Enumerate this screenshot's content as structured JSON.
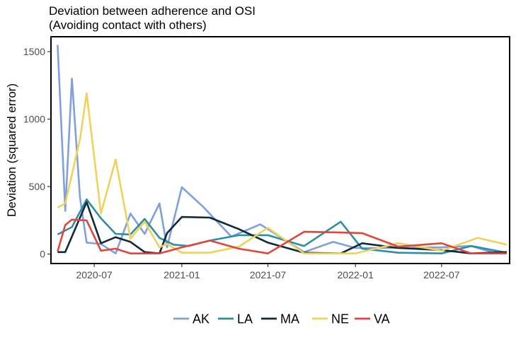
{
  "chart_data": {
    "type": "line",
    "title": "Deviation between adherence and OSI\n(Avoiding contact with others)",
    "title_lines": [
      "Deviation between adherence and OSI",
      "(Avoiding contact with others)"
    ],
    "xlabel": "",
    "ylabel": "Deviation (squared error)",
    "xlim": [
      "2020-04-01",
      "2022-11-21"
    ],
    "ylim": [
      -70,
      1610
    ],
    "x_ticks": [
      "2020-07-01",
      "2021-01-01",
      "2021-07-01",
      "2022-01-01",
      "2022-07-01"
    ],
    "x_tick_labels": [
      "2020-07",
      "2021-01",
      "2021-07",
      "2022-01",
      "2022-07"
    ],
    "y_ticks": [
      0,
      500,
      1000,
      1500
    ],
    "y_tick_labels": [
      "0",
      "500",
      "1000",
      "1500"
    ],
    "grid": false,
    "legend_position": "bottom",
    "series": [
      {
        "name": "AK",
        "color": "#7f9fdf",
        "points": [
          [
            "2020-04-15",
            1550
          ],
          [
            "2020-05-01",
            320
          ],
          [
            "2020-05-15",
            1300
          ],
          [
            "2020-06-01",
            420
          ],
          [
            "2020-06-15",
            85
          ],
          [
            "2020-07-15",
            75
          ],
          [
            "2020-08-15",
            5
          ],
          [
            "2020-09-15",
            300
          ],
          [
            "2020-10-15",
            150
          ],
          [
            "2020-11-15",
            375
          ],
          [
            "2020-12-01",
            50
          ],
          [
            "2021-01-01",
            495
          ],
          [
            "2021-02-15",
            350
          ],
          [
            "2021-04-15",
            130
          ],
          [
            "2021-06-15",
            220
          ],
          [
            "2021-09-15",
            15
          ],
          [
            "2021-11-15",
            90
          ],
          [
            "2022-01-01",
            45
          ],
          [
            "2022-04-01",
            45
          ],
          [
            "2022-07-01",
            50
          ],
          [
            "2022-09-01",
            60
          ],
          [
            "2022-10-15",
            15
          ],
          [
            "2022-11-15",
            10
          ]
        ]
      },
      {
        "name": "LA",
        "color": "#2b8ea6",
        "points": [
          [
            "2020-04-15",
            145
          ],
          [
            "2020-05-15",
            200
          ],
          [
            "2020-06-15",
            405
          ],
          [
            "2020-07-15",
            265
          ],
          [
            "2020-08-15",
            150
          ],
          [
            "2020-09-15",
            145
          ],
          [
            "2020-10-15",
            260
          ],
          [
            "2020-11-15",
            120
          ],
          [
            "2020-12-15",
            70
          ],
          [
            "2021-01-15",
            60
          ],
          [
            "2021-03-01",
            100
          ],
          [
            "2021-05-01",
            140
          ],
          [
            "2021-07-01",
            140
          ],
          [
            "2021-09-15",
            60
          ],
          [
            "2021-12-01",
            240
          ],
          [
            "2022-01-15",
            40
          ],
          [
            "2022-04-01",
            10
          ],
          [
            "2022-07-01",
            5
          ],
          [
            "2022-09-01",
            60
          ],
          [
            "2022-11-15",
            10
          ]
        ]
      },
      {
        "name": "MA",
        "color": "#0f2a3a",
        "points": [
          [
            "2020-04-15",
            15
          ],
          [
            "2020-05-01",
            15
          ],
          [
            "2020-06-15",
            385
          ],
          [
            "2020-07-15",
            80
          ],
          [
            "2020-08-15",
            125
          ],
          [
            "2020-09-15",
            90
          ],
          [
            "2020-10-15",
            15
          ],
          [
            "2020-11-15",
            5
          ],
          [
            "2020-12-01",
            155
          ],
          [
            "2021-01-01",
            275
          ],
          [
            "2021-03-01",
            270
          ],
          [
            "2021-05-01",
            185
          ],
          [
            "2021-07-01",
            85
          ],
          [
            "2021-09-15",
            10
          ],
          [
            "2021-12-01",
            5
          ],
          [
            "2022-01-15",
            80
          ],
          [
            "2022-04-01",
            45
          ],
          [
            "2022-07-01",
            30
          ],
          [
            "2022-09-01",
            5
          ],
          [
            "2022-11-15",
            15
          ]
        ]
      },
      {
        "name": "NE",
        "color": "#f0d15a",
        "points": [
          [
            "2020-04-15",
            345
          ],
          [
            "2020-05-01",
            375
          ],
          [
            "2020-06-01",
            850
          ],
          [
            "2020-06-15",
            1190
          ],
          [
            "2020-07-15",
            300
          ],
          [
            "2020-08-15",
            700
          ],
          [
            "2020-09-15",
            115
          ],
          [
            "2020-10-15",
            240
          ],
          [
            "2020-11-15",
            50
          ],
          [
            "2020-12-01",
            75
          ],
          [
            "2021-01-01",
            10
          ],
          [
            "2021-03-01",
            10
          ],
          [
            "2021-05-01",
            55
          ],
          [
            "2021-07-01",
            195
          ],
          [
            "2021-09-15",
            5
          ],
          [
            "2022-01-01",
            5
          ],
          [
            "2022-04-01",
            80
          ],
          [
            "2022-07-01",
            25
          ],
          [
            "2022-09-15",
            120
          ],
          [
            "2022-11-15",
            70
          ]
        ]
      },
      {
        "name": "VA",
        "color": "#e0473a",
        "points": [
          [
            "2020-04-15",
            20
          ],
          [
            "2020-05-01",
            215
          ],
          [
            "2020-05-15",
            255
          ],
          [
            "2020-06-15",
            250
          ],
          [
            "2020-07-15",
            25
          ],
          [
            "2020-08-15",
            40
          ],
          [
            "2020-09-15",
            5
          ],
          [
            "2020-10-15",
            5
          ],
          [
            "2020-11-15",
            5
          ],
          [
            "2021-01-01",
            50
          ],
          [
            "2021-03-01",
            100
          ],
          [
            "2021-05-01",
            40
          ],
          [
            "2021-07-01",
            5
          ],
          [
            "2021-09-15",
            165
          ],
          [
            "2021-12-01",
            160
          ],
          [
            "2022-01-15",
            155
          ],
          [
            "2022-04-01",
            55
          ],
          [
            "2022-07-01",
            80
          ],
          [
            "2022-09-01",
            5
          ],
          [
            "2022-11-15",
            5
          ]
        ]
      }
    ]
  }
}
